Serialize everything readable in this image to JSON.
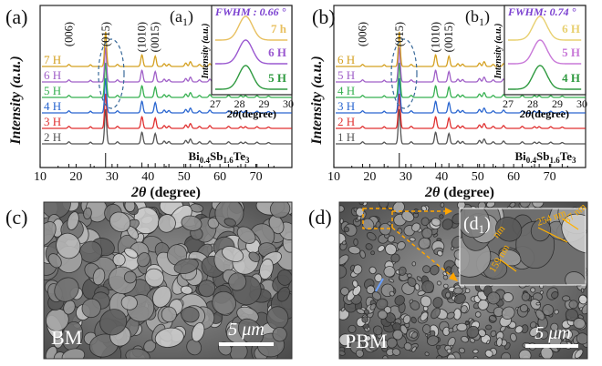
{
  "chart_data": [
    {
      "type": "line",
      "panel_label": "(a)",
      "ylabel": "Intensity (a.u.)",
      "xlabel": "2θ (degree)",
      "xlim": [
        10,
        80
      ],
      "xticks": [
        "10",
        "20",
        "30",
        "40",
        "50",
        "60",
        "70"
      ],
      "series": [
        {
          "name": "2 H",
          "color": "#555555"
        },
        {
          "name": "3 H",
          "color": "#e03030"
        },
        {
          "name": "4 H",
          "color": "#2a66d0"
        },
        {
          "name": "5 H",
          "color": "#36b050"
        },
        {
          "name": "6 H",
          "color": "#a060c8"
        },
        {
          "name": "7 H",
          "color": "#d4a020"
        }
      ],
      "peaks": [
        {
          "label": "(006)",
          "x": 18.0
        },
        {
          "label": "(015)",
          "x": 28.2
        },
        {
          "label": "(1010)",
          "x": 38.3
        },
        {
          "label": "(0015)",
          "x": 42.0
        }
      ],
      "composition": "Bi0.4Sb1.6Te3",
      "inset": {
        "label": "(a1)",
        "fwhm_text": "FWHM : 0.66 °",
        "ylabel": "Intensity (a.u.)",
        "xlabel": "2θ (degree)",
        "xticks": [
          "27",
          "28",
          "29",
          "30"
        ],
        "series": [
          {
            "name": "7 h",
            "color": "#e8c060",
            "peak": 28.25
          },
          {
            "name": "6 H",
            "color": "#9a58d0",
            "peak": 28.25
          },
          {
            "name": "5 H",
            "color": "#2f9a40",
            "peak": 28.25
          }
        ]
      }
    },
    {
      "type": "line",
      "panel_label": "(b)",
      "ylabel": "Intensity (a.u.)",
      "xlabel": "2θ (degree)",
      "xlim": [
        10,
        80
      ],
      "xticks": [
        "10",
        "20",
        "30",
        "40",
        "50",
        "60",
        "70"
      ],
      "series": [
        {
          "name": "1 H",
          "color": "#555555"
        },
        {
          "name": "2 H",
          "color": "#e03030"
        },
        {
          "name": "3 H",
          "color": "#2a66d0"
        },
        {
          "name": "4 H",
          "color": "#36b050"
        },
        {
          "name": "5 H",
          "color": "#a060c8"
        },
        {
          "name": "6 H",
          "color": "#d4a020"
        }
      ],
      "peaks": [
        {
          "label": "(006)",
          "x": 18.0
        },
        {
          "label": "(015)",
          "x": 28.2
        },
        {
          "label": "(1010)",
          "x": 38.3
        },
        {
          "label": "(0015)",
          "x": 42.0
        }
      ],
      "composition": "Bi0.4Sb1.6Te3",
      "inset": {
        "label": "(b1)",
        "fwhm_text": "FWHM: 0.74 °",
        "ylabel": "Intensity (a.u.)",
        "xlabel": "2θ (degree)",
        "xticks": [
          "27",
          "28",
          "29",
          "30"
        ],
        "series": [
          {
            "name": "6 H",
            "color": "#e8d070",
            "peak": 28.3
          },
          {
            "name": "5 H",
            "color": "#c878d8",
            "peak": 28.3
          },
          {
            "name": "4 H",
            "color": "#2f9a40",
            "peak": 28.3
          }
        ]
      }
    }
  ],
  "images": {
    "c": {
      "panel_label": "(c)",
      "sample_label": "BM",
      "scale_bar": "5 μm"
    },
    "d": {
      "panel_label": "(d)",
      "sample_label": "PBM",
      "scale_bar": "5 μm",
      "inset_label": "(d1)",
      "annotations": [
        "254 nm",
        "87 nm",
        "159 nm",
        "nm"
      ]
    }
  }
}
